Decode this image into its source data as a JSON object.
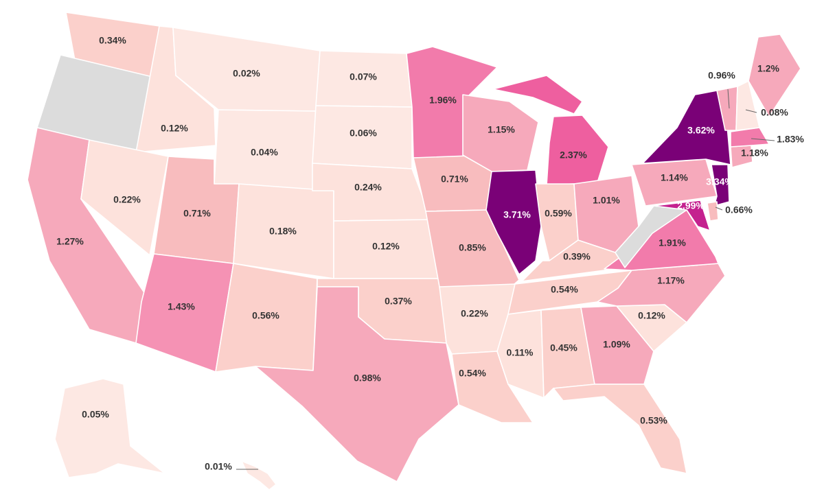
{
  "map": {
    "palette": {
      "no_data": "#dcdcdc",
      "bins": [
        "#fde8e3",
        "#fde2dc",
        "#fbd0cb",
        "#f8bcbe",
        "#f6a9bb",
        "#f592b4",
        "#f27bab",
        "#ee5f9f",
        "#c4218f",
        "#7a0177"
      ],
      "label_dark": "#333333",
      "label_light": "#ffffff"
    },
    "states": [
      {
        "code": "WA",
        "value": "0.34%",
        "pct": 0.34
      },
      {
        "code": "OR",
        "value": "",
        "pct": null
      },
      {
        "code": "CA",
        "value": "1.27%",
        "pct": 1.27
      },
      {
        "code": "ID",
        "value": "0.12%",
        "pct": 0.12
      },
      {
        "code": "NV",
        "value": "0.22%",
        "pct": 0.22
      },
      {
        "code": "MT",
        "value": "0.02%",
        "pct": 0.02
      },
      {
        "code": "WY",
        "value": "0.04%",
        "pct": 0.04
      },
      {
        "code": "UT",
        "value": "0.71%",
        "pct": 0.71
      },
      {
        "code": "AZ",
        "value": "1.43%",
        "pct": 1.43
      },
      {
        "code": "CO",
        "value": "0.18%",
        "pct": 0.18
      },
      {
        "code": "NM",
        "value": "0.56%",
        "pct": 0.56
      },
      {
        "code": "ND",
        "value": "0.07%",
        "pct": 0.07
      },
      {
        "code": "SD",
        "value": "0.06%",
        "pct": 0.06
      },
      {
        "code": "NE",
        "value": "0.24%",
        "pct": 0.24
      },
      {
        "code": "KS",
        "value": "0.12%",
        "pct": 0.12
      },
      {
        "code": "OK",
        "value": "0.37%",
        "pct": 0.37
      },
      {
        "code": "TX",
        "value": "0.98%",
        "pct": 0.98
      },
      {
        "code": "MN",
        "value": "1.96%",
        "pct": 1.96
      },
      {
        "code": "IA",
        "value": "0.71%",
        "pct": 0.71
      },
      {
        "code": "MO",
        "value": "0.85%",
        "pct": 0.85
      },
      {
        "code": "AR",
        "value": "0.22%",
        "pct": 0.22
      },
      {
        "code": "LA",
        "value": "0.54%",
        "pct": 0.54
      },
      {
        "code": "WI",
        "value": "1.15%",
        "pct": 1.15
      },
      {
        "code": "IL",
        "value": "3.71%",
        "pct": 3.71
      },
      {
        "code": "MI",
        "value": "2.37%",
        "pct": 2.37
      },
      {
        "code": "IN",
        "value": "0.59%",
        "pct": 0.59
      },
      {
        "code": "OH",
        "value": "1.01%",
        "pct": 1.01
      },
      {
        "code": "KY",
        "value": "0.39%",
        "pct": 0.39
      },
      {
        "code": "TN",
        "value": "0.54%",
        "pct": 0.54
      },
      {
        "code": "MS",
        "value": "0.11%",
        "pct": 0.11
      },
      {
        "code": "AL",
        "value": "0.45%",
        "pct": 0.45
      },
      {
        "code": "GA",
        "value": "1.09%",
        "pct": 1.09
      },
      {
        "code": "FL",
        "value": "0.53%",
        "pct": 0.53
      },
      {
        "code": "SC",
        "value": "0.12%",
        "pct": 0.12
      },
      {
        "code": "NC",
        "value": "1.17%",
        "pct": 1.17
      },
      {
        "code": "VA",
        "value": "1.91%",
        "pct": 1.91
      },
      {
        "code": "WV",
        "value": "",
        "pct": null
      },
      {
        "code": "PA",
        "value": "1.14%",
        "pct": 1.14
      },
      {
        "code": "NY",
        "value": "3.62%",
        "pct": 3.62
      },
      {
        "code": "NJ",
        "value": "3.34%",
        "pct": 3.34
      },
      {
        "code": "MD",
        "value": "2.99%",
        "pct": 2.99
      },
      {
        "code": "DE",
        "value": "0.66%",
        "pct": 0.66
      },
      {
        "code": "CT",
        "value": "1.18%",
        "pct": 1.18
      },
      {
        "code": "MA",
        "value": "1.83%",
        "pct": 1.83
      },
      {
        "code": "VT",
        "value": "0.96%",
        "pct": 0.96
      },
      {
        "code": "NH",
        "value": "0.08%",
        "pct": 0.08
      },
      {
        "code": "ME",
        "value": "1.2%",
        "pct": 1.2
      },
      {
        "code": "AK",
        "value": "0.05%",
        "pct": 0.05
      },
      {
        "code": "HI",
        "value": "0.01%",
        "pct": 0.01
      }
    ]
  }
}
